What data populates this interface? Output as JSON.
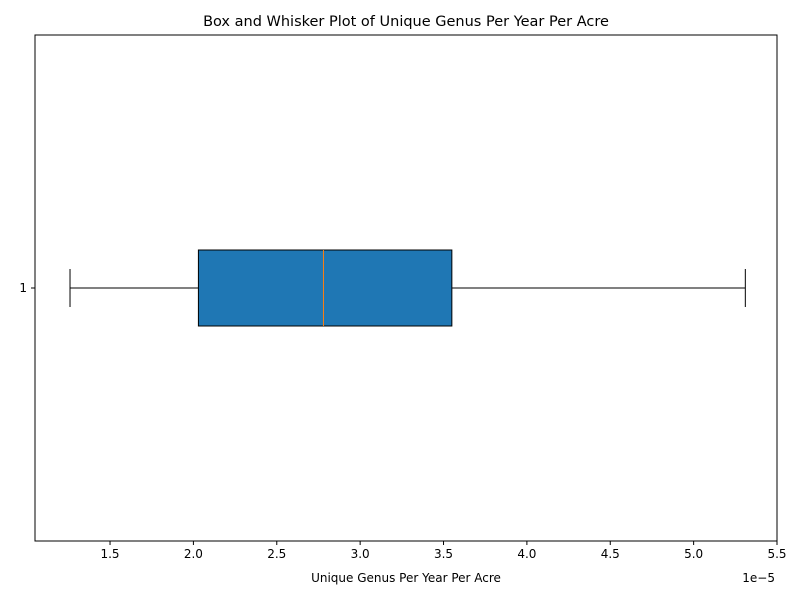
{
  "chart_data": {
    "type": "boxplot",
    "orientation": "horizontal",
    "title": "Box and Whisker Plot of Unique Genus Per Year Per Acre",
    "xlabel": "Unique Genus Per Year Per Acre",
    "ylabel": "",
    "offset_label": "1e−5",
    "xlim": [
      1.05,
      5.5
    ],
    "x_ticks": [
      1.5,
      2.0,
      2.5,
      3.0,
      3.5,
      4.0,
      4.5,
      5.0,
      5.5
    ],
    "x_tick_labels": [
      "1.5",
      "2.0",
      "2.5",
      "3.0",
      "3.5",
      "4.0",
      "4.5",
      "5.0",
      "5.5"
    ],
    "y_ticks": [
      1
    ],
    "y_tick_labels": [
      "1"
    ],
    "grid": false,
    "series": [
      {
        "position": 1,
        "whisker_low": 1.26,
        "q1": 2.03,
        "median": 2.78,
        "q3": 3.55,
        "whisker_high": 5.31
      }
    ],
    "colors": {
      "box_fill": "#1f77b4",
      "median_line": "#ff7f0e",
      "edge": "#000000"
    }
  }
}
